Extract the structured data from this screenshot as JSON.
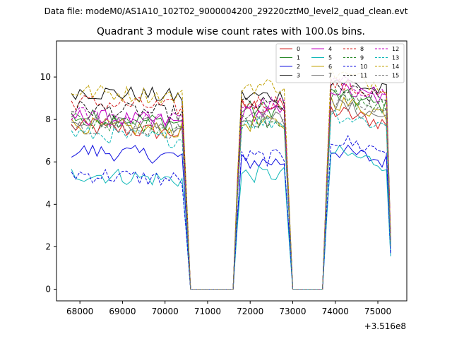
{
  "figure": {
    "suptitle": "Data file: modeM0/AS1A10_102T02_9000004200_29220cztM0_level2_quad_clean.evt"
  },
  "chart_data": {
    "type": "line",
    "title": "Quadrant 3 module wise count rates with 100.0s bins.",
    "xlabel": "",
    "ylabel": "",
    "x_offset_label": "+3.516e8",
    "xlim": [
      67450,
      75680
    ],
    "ylim": [
      -0.55,
      11.7
    ],
    "x_ticks": [
      68000,
      69000,
      70000,
      71000,
      72000,
      73000,
      74000,
      75000
    ],
    "x_tick_labels": [
      "68000",
      "69000",
      "70000",
      "71000",
      "72000",
      "73000",
      "74000",
      "75000"
    ],
    "y_ticks": [
      0,
      2,
      4,
      6,
      8,
      10
    ],
    "y_tick_labels": [
      "0",
      "2",
      "4",
      "6",
      "8",
      "10"
    ],
    "grid": false,
    "legend_position": "top-right",
    "legend_columns": 4,
    "segments": [
      {
        "start": 67800,
        "end": 70400
      },
      {
        "start": 71800,
        "end": 72800
      },
      {
        "start": 73900,
        "end": 75200
      }
    ],
    "x_note": "100 s bins within each segment; drops to 0 in data gaps (70600-71700, 73000-73700)",
    "series": [
      {
        "name": "0",
        "color": "#d62020",
        "dash": false,
        "levels": [
          7.5,
          8.6,
          8.1
        ]
      },
      {
        "name": "1",
        "color": "#2a8a2a",
        "dash": false,
        "levels": [
          8.0,
          8.5,
          8.9
        ]
      },
      {
        "name": "2",
        "color": "#1010e0",
        "dash": false,
        "levels": [
          6.4,
          6.0,
          6.3
        ]
      },
      {
        "name": "3",
        "color": "#111111",
        "dash": false,
        "levels": [
          9.2,
          9.1,
          9.6
        ]
      },
      {
        "name": "4",
        "color": "#c000c0",
        "dash": false,
        "levels": [
          8.0,
          8.3,
          9.2
        ]
      },
      {
        "name": "5",
        "color": "#10b8b8",
        "dash": false,
        "levels": [
          5.3,
          5.4,
          6.2
        ]
      },
      {
        "name": "6",
        "color": "#c0a000",
        "dash": false,
        "levels": [
          7.6,
          7.8,
          8.6
        ]
      },
      {
        "name": "7",
        "color": "#707070",
        "dash": false,
        "levels": [
          7.9,
          8.0,
          8.4
        ]
      },
      {
        "name": "8",
        "color": "#d62020",
        "dash": true,
        "levels": [
          8.7,
          8.8,
          9.4
        ]
      },
      {
        "name": "9",
        "color": "#2a8a2a",
        "dash": true,
        "levels": [
          7.8,
          8.0,
          8.8
        ]
      },
      {
        "name": "10",
        "color": "#1010e0",
        "dash": true,
        "levels": [
          5.3,
          6.2,
          6.8
        ]
      },
      {
        "name": "11",
        "color": "#111111",
        "dash": true,
        "levels": [
          8.4,
          8.7,
          9.2
        ]
      },
      {
        "name": "12",
        "color": "#c000c0",
        "dash": true,
        "levels": [
          8.1,
          8.7,
          9.5
        ]
      },
      {
        "name": "13",
        "color": "#10b8b8",
        "dash": true,
        "levels": [
          7.2,
          7.9,
          8.0
        ]
      },
      {
        "name": "14",
        "color": "#c0a000",
        "dash": true,
        "levels": [
          9.2,
          9.6,
          9.9
        ]
      },
      {
        "name": "15",
        "color": "#707070",
        "dash": true,
        "levels": [
          7.6,
          8.1,
          8.7
        ]
      }
    ]
  }
}
